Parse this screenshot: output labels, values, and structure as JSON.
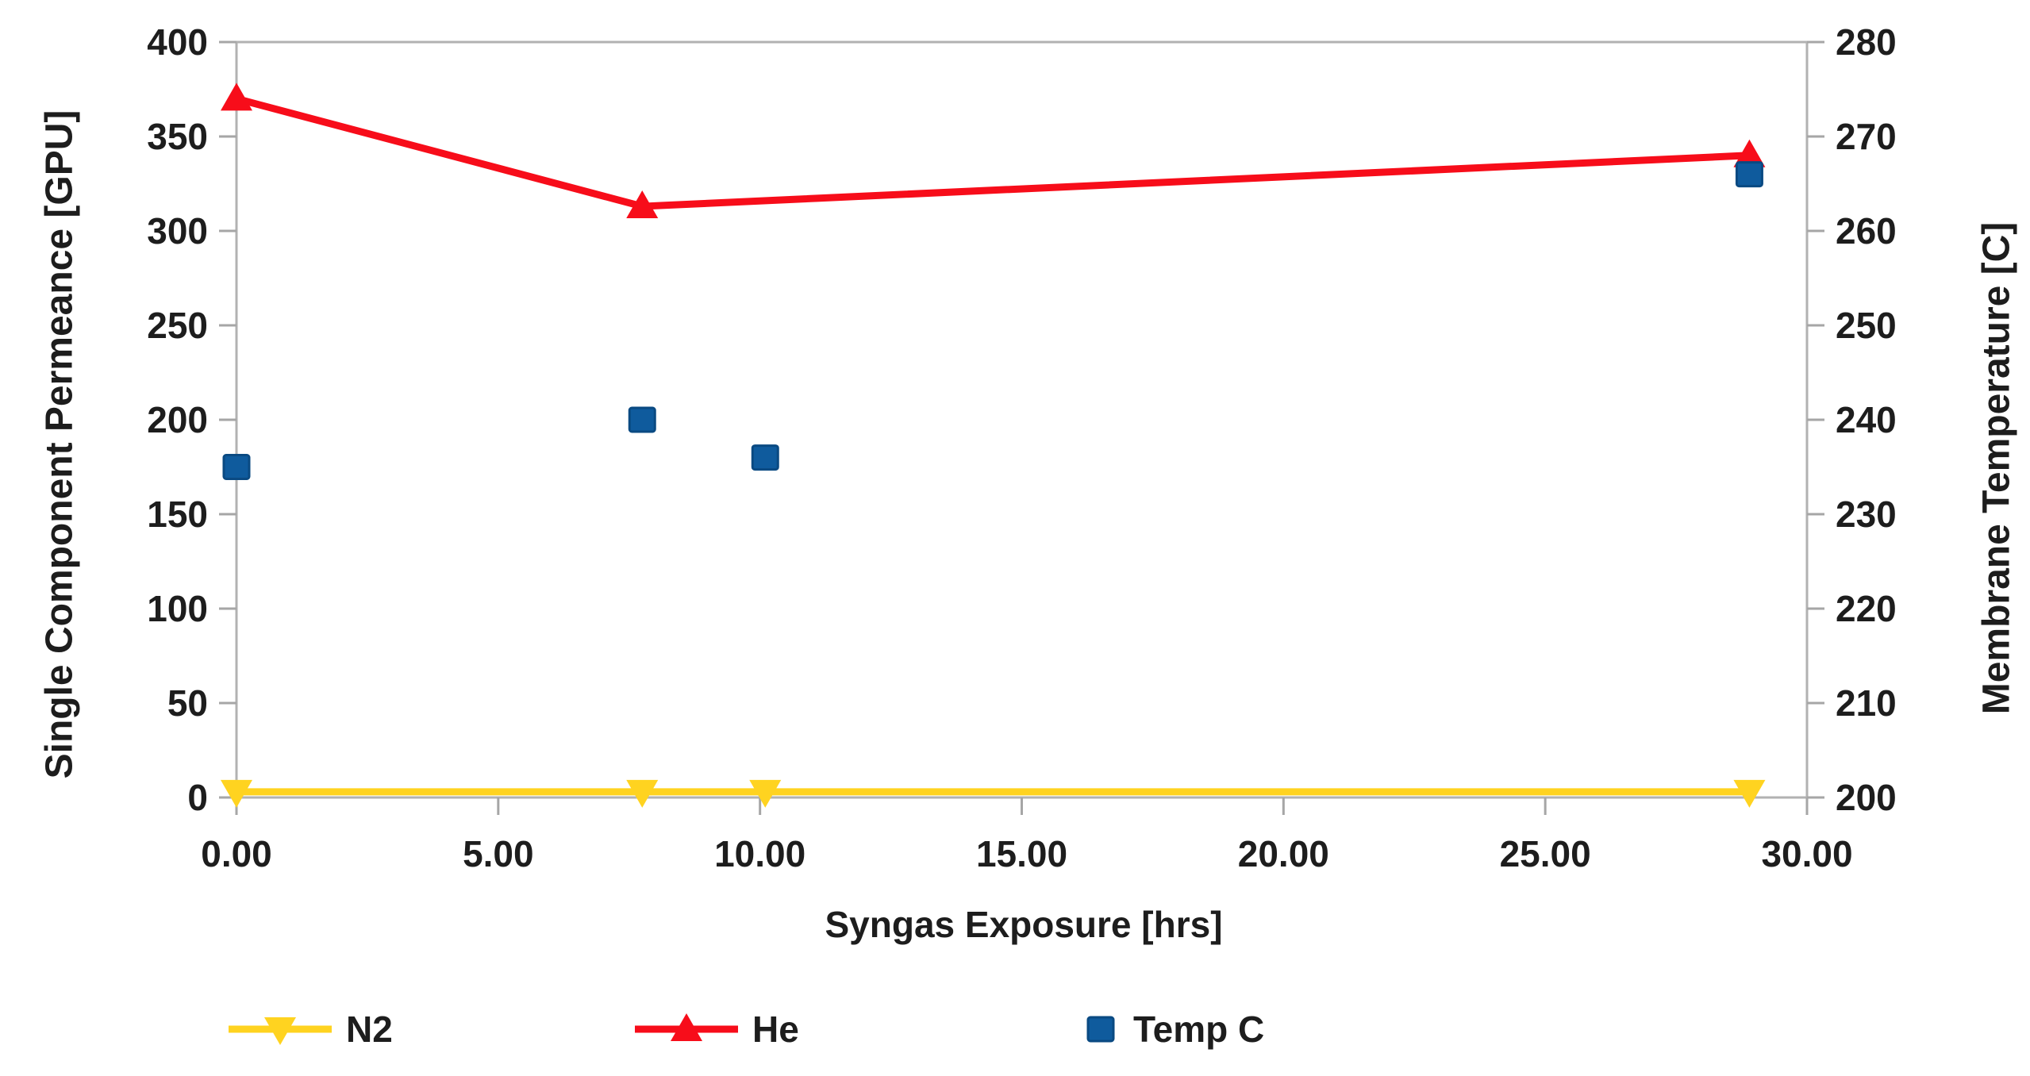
{
  "chart_data": {
    "type": "line",
    "title": "",
    "xlabel": "Syngas Exposure [hrs]",
    "ylabel_left": "Single Component Permeance [GPU]",
    "ylabel_right": "Membrane Temperature [C]",
    "x_range": [
      0,
      30
    ],
    "y_left_range": [
      0,
      400
    ],
    "y_right_range": [
      200,
      280
    ],
    "x_ticks": [
      "0.00",
      "5.00",
      "10.00",
      "15.00",
      "20.00",
      "25.00",
      "30.00"
    ],
    "y_left_ticks": [
      "400",
      "350",
      "300",
      "250",
      "200",
      "150",
      "100",
      "50",
      "0"
    ],
    "y_right_ticks": [
      "280",
      "270",
      "260",
      "250",
      "240",
      "230",
      "220",
      "210",
      "200"
    ],
    "grid": false,
    "legend_position": "bottom",
    "colors": {
      "axis_line": "#b2b2b2",
      "tick": "#a6a6a6",
      "text": "#1d1d1d",
      "n2": "#FFD320",
      "he": "#F70D1A",
      "temp": "#0F5B9D",
      "temp_border": "#0A4A82"
    },
    "series": [
      {
        "name": "N2",
        "axis": "left",
        "marker": "triangle-down",
        "line": true,
        "color": "#FFD320",
        "x": [
          0.0,
          7.75,
          10.1,
          28.9
        ],
        "y": [
          3,
          3,
          3,
          3
        ]
      },
      {
        "name": "He",
        "axis": "left",
        "marker": "triangle-up",
        "line": true,
        "color": "#F70D1A",
        "x": [
          0.0,
          7.75,
          28.9
        ],
        "y": [
          370,
          313,
          340
        ]
      },
      {
        "name": "Temp C",
        "axis": "right",
        "marker": "square",
        "line": false,
        "color": "#0F5B9D",
        "border_color": "#0A4A82",
        "x": [
          0.0,
          7.75,
          10.1,
          28.9
        ],
        "y": [
          235,
          240,
          236,
          266
        ]
      }
    ]
  }
}
